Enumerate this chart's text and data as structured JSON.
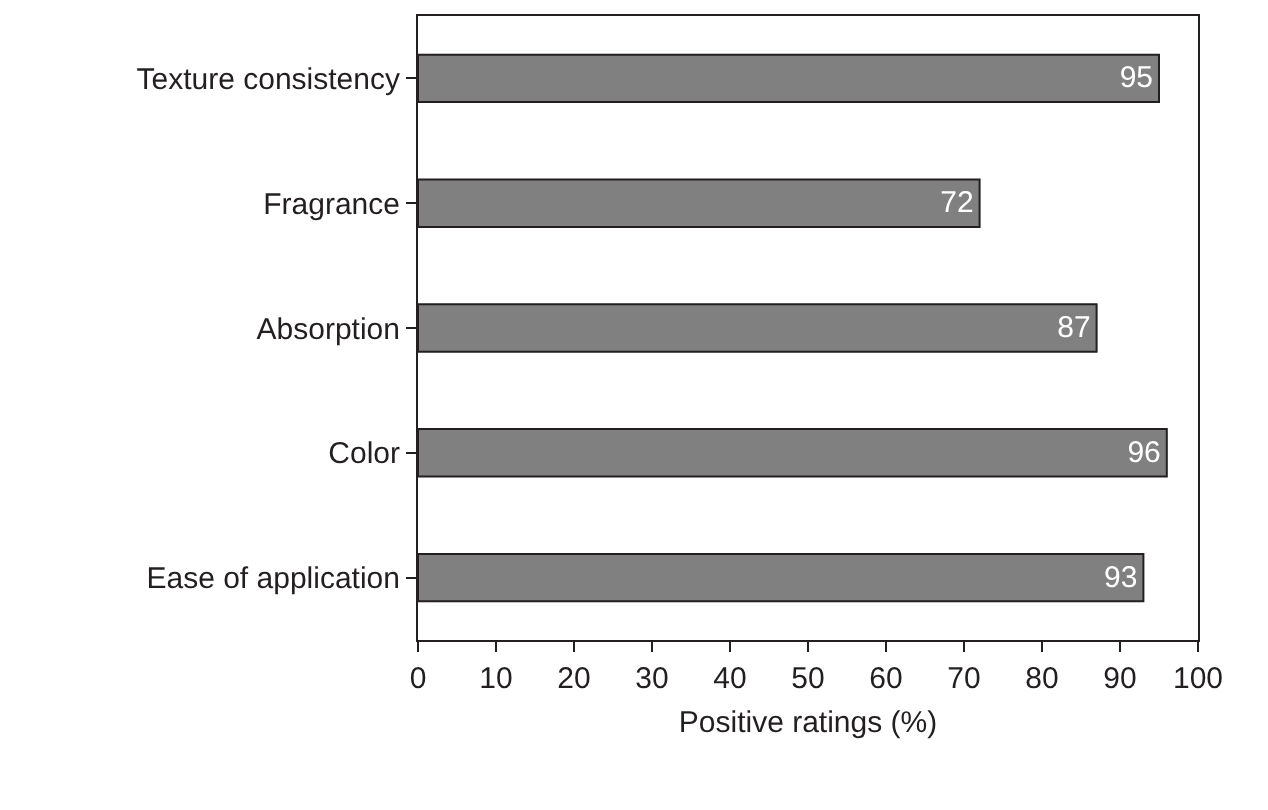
{
  "chart_data": {
    "type": "bar",
    "orientation": "horizontal",
    "categories": [
      "Texture consistency",
      "Fragrance",
      "Absorption",
      "Color",
      "Ease of application"
    ],
    "values": [
      95,
      72,
      87,
      96,
      93
    ],
    "color": "#808080",
    "xlabel": "Positive ratings (%)",
    "xlim": [
      0,
      100
    ],
    "xticks": [
      0,
      10,
      20,
      30,
      40,
      50,
      60,
      70,
      80,
      90,
      100
    ],
    "grid": false,
    "legend": false,
    "data_labels": true
  }
}
